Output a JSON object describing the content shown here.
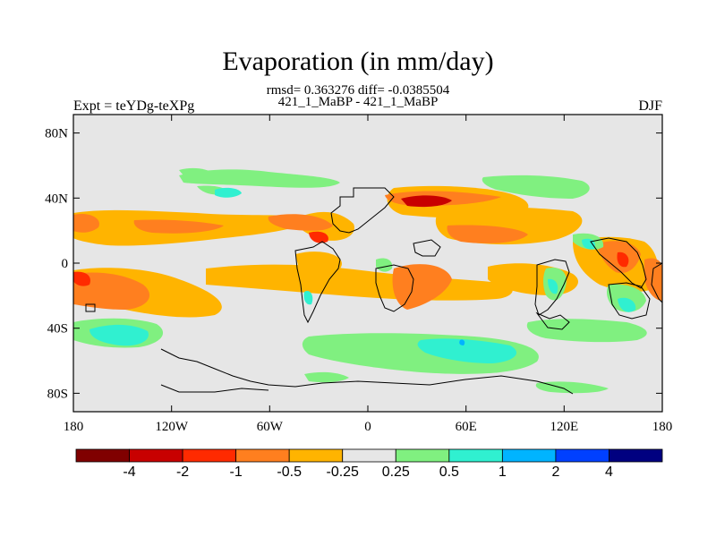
{
  "chart_data": {
    "type": "heatmap",
    "title": "Evaporation (in mm/day)",
    "stats_line": "rmsd= 0.363276 diff= -0.0385504",
    "case_line": "421_1_MaBP - 421_1_MaBP",
    "left_label": "Expt = teYDg-teXPg",
    "right_label": "DJF",
    "x_ticks": [
      "180",
      "120W",
      "60W",
      "0",
      "60E",
      "120E",
      "180"
    ],
    "y_ticks": [
      "80N",
      "40N",
      "0",
      "40S",
      "80S"
    ],
    "colorbar": {
      "colors": [
        "#800000",
        "#c80000",
        "#ff2a00",
        "#ff7f1f",
        "#ffb400",
        "#e6e6e6",
        "#80f080",
        "#30f0d0",
        "#00b4ff",
        "#0040ff",
        "#000080"
      ],
      "labels": [
        "-4",
        "-2",
        "-1",
        "-0.5",
        "-0.25",
        "0.25",
        "0.5",
        "1",
        "2",
        "4"
      ]
    },
    "palette": {
      "background": "#e6e6e6",
      "light_orange": "#ffb400",
      "orange": "#ff7f1f",
      "red": "#ff2a00",
      "dark_red": "#c80000",
      "light_green": "#80f080",
      "cyan": "#30f0d0",
      "light_blue": "#00b4ff"
    }
  }
}
